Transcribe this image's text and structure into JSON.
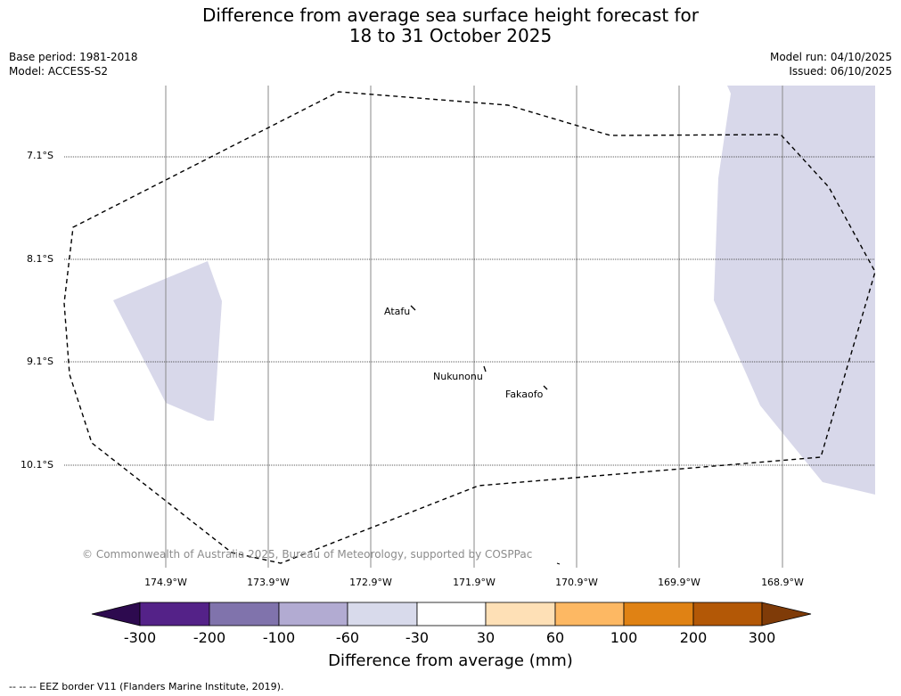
{
  "title": {
    "line1": "Difference from average sea surface height forecast for",
    "line2": "18 to 31 October 2025"
  },
  "meta_left": {
    "base_period": "Base period: 1981-2018",
    "model": "Model: ACCESS-S2"
  },
  "meta_right": {
    "model_run": "Model run: 04/10/2025",
    "issued": "Issued: 06/10/2025"
  },
  "map": {
    "lat_labels": [
      "7.1°S",
      "8.1°S",
      "9.1°S",
      "10.1°S"
    ],
    "lon_labels": [
      "174.9°W",
      "173.9°W",
      "172.9°W",
      "171.9°W",
      "170.9°W",
      "169.9°W",
      "168.9°W"
    ],
    "places": [
      "Atafu",
      "Nukunonu",
      "Fakaofo"
    ],
    "copyright": "© Commonwealth of Australia 2025, Bureau of Meteorology, supported by COSPPac",
    "anomaly_fill_color": "#d8d8ea"
  },
  "colorbar": {
    "ticks": [
      "-300",
      "-200",
      "-100",
      "-60",
      "-30",
      "30",
      "60",
      "100",
      "200",
      "300"
    ],
    "colors": [
      "#2d0a4f",
      "#542288",
      "#8073ac",
      "#b2abd2",
      "#d8daeb",
      "#ffffff",
      "#fee0b6",
      "#fdb863",
      "#e08214",
      "#b35806",
      "#7f3b08"
    ],
    "label": "Difference from average (mm)"
  },
  "legend_note": "--  --  -- EEZ border V11 (Flanders Marine Institute, 2019)."
}
